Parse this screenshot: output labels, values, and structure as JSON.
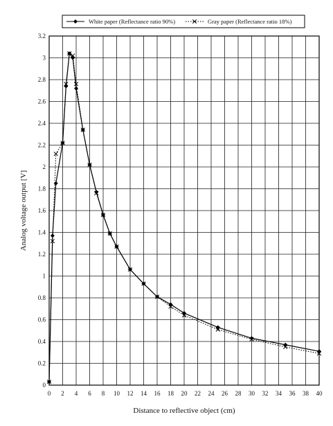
{
  "chart_data": {
    "type": "line",
    "xlabel": "Distance to reflective object  (cm)",
    "ylabel": "Analog voltage output [V]",
    "xlim": [
      0,
      40
    ],
    "ylim": [
      0,
      3.2
    ],
    "x_ticks": [
      "0",
      "2",
      "4",
      "6",
      "8",
      "10",
      "12",
      "14",
      "16",
      "18",
      "20",
      "22",
      "24",
      "26",
      "28",
      "30",
      "32",
      "34",
      "36",
      "38",
      "40"
    ],
    "y_ticks": [
      "0",
      "0.2",
      "0.4",
      "0.6",
      "0.8",
      "1",
      "1.2",
      "1.4",
      "1.6",
      "1.8",
      "2",
      "2.2",
      "2.4",
      "2.6",
      "2.8",
      "3",
      "3.2"
    ],
    "grid": true,
    "legend": "top",
    "series": [
      {
        "name": "White paper (Reflectance ratio 90%)",
        "marker": "diamond",
        "line": "solid",
        "color": "#000000",
        "points": [
          [
            0,
            0.03
          ],
          [
            0.5,
            1.37
          ],
          [
            1,
            1.85
          ],
          [
            2,
            2.22
          ],
          [
            2.5,
            2.74
          ],
          [
            3,
            3.04
          ],
          [
            3.5,
            3.0
          ],
          [
            4,
            2.72
          ],
          [
            5,
            2.34
          ],
          [
            6,
            2.02
          ],
          [
            7,
            1.77
          ],
          [
            8,
            1.56
          ],
          [
            9,
            1.39
          ],
          [
            10,
            1.27
          ],
          [
            12,
            1.06
          ],
          [
            14,
            0.93
          ],
          [
            16,
            0.81
          ],
          [
            18,
            0.74
          ],
          [
            20,
            0.66
          ],
          [
            25,
            0.53
          ],
          [
            30,
            0.43
          ],
          [
            35,
            0.37
          ],
          [
            40,
            0.31
          ]
        ]
      },
      {
        "name": "Gray paper (Reflectance ratio 18%)",
        "marker": "x",
        "line": "dotted",
        "color": "#000000",
        "points": [
          [
            0,
            0.03
          ],
          [
            0.5,
            1.32
          ],
          [
            1,
            2.12
          ],
          [
            2,
            2.22
          ],
          [
            2.5,
            2.76
          ],
          [
            3,
            3.04
          ],
          [
            3.5,
            3.02
          ],
          [
            4,
            2.76
          ],
          [
            5,
            2.34
          ],
          [
            6,
            2.02
          ],
          [
            7,
            1.76
          ],
          [
            8,
            1.56
          ],
          [
            9,
            1.39
          ],
          [
            10,
            1.27
          ],
          [
            12,
            1.06
          ],
          [
            14,
            0.93
          ],
          [
            16,
            0.81
          ],
          [
            18,
            0.72
          ],
          [
            20,
            0.64
          ],
          [
            25,
            0.51
          ],
          [
            30,
            0.42
          ],
          [
            35,
            0.35
          ],
          [
            40,
            0.29
          ]
        ]
      }
    ]
  }
}
